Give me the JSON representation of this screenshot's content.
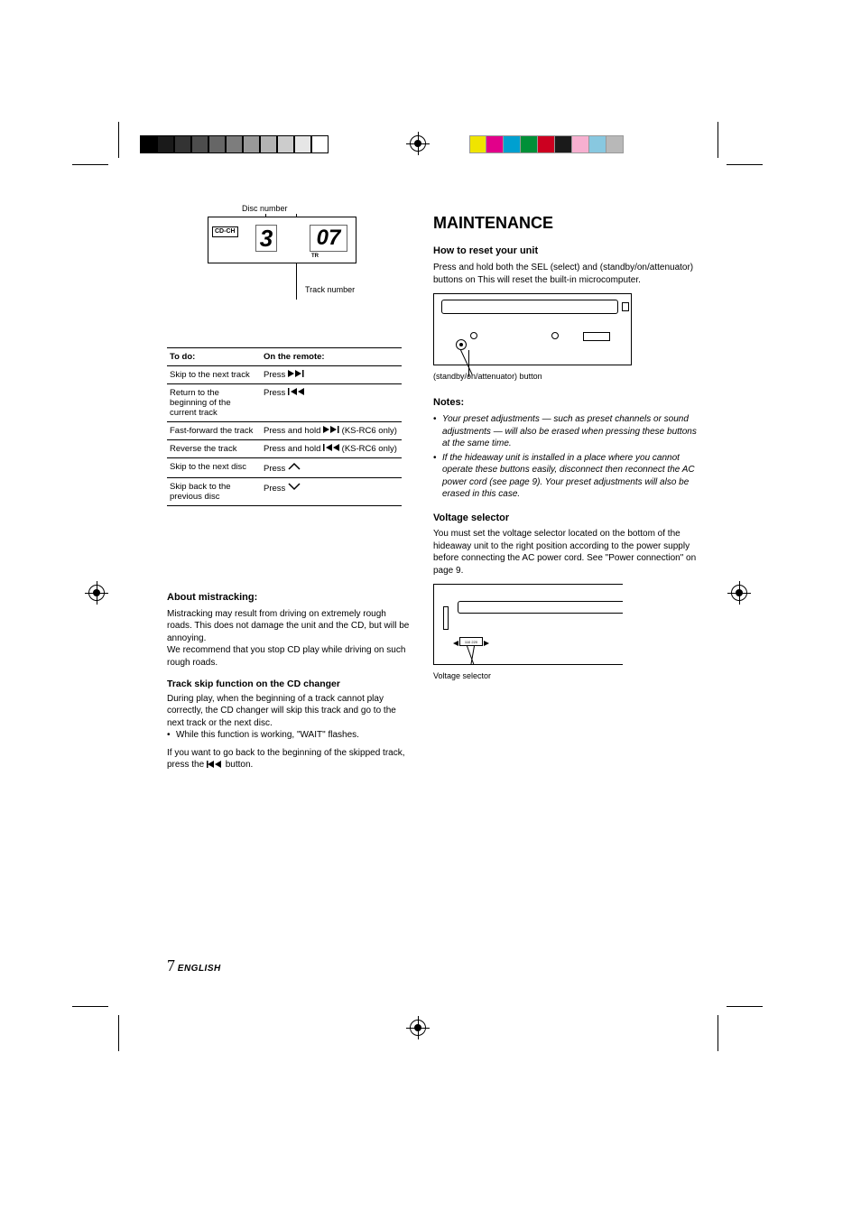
{
  "crop_marks": {
    "grayscale_swatches": [
      "#000000",
      "#1a1a1a",
      "#333333",
      "#4d4d4d",
      "#666666",
      "#7d7d7d",
      "#999999",
      "#b3b3b3",
      "#cccccc",
      "#e6e6e6",
      "#ffffff"
    ],
    "color_swatches": [
      "#f0e400",
      "#e2008a",
      "#00a0d0",
      "#009038",
      "#cc0020",
      "#1a1a1a",
      "#f7b0d0",
      "#88c8e0",
      "#b8b8b8"
    ]
  },
  "lcd": {
    "cdch_label": "CD-CH",
    "disc_digit": "3",
    "track_digits": "07",
    "tr_label": "TR",
    "top_caption": "Disc number",
    "bottom_caption": "Track number"
  },
  "ops_table": {
    "header_left": "To do:",
    "header_right": "On the remote:",
    "rows": [
      {
        "l": "Skip to the next track",
        "r_prefix": "Press ",
        "icon": "next",
        "r_suffix": ""
      },
      {
        "l": "Return to the beginning of the current track",
        "r_prefix": "Press ",
        "icon": "prev",
        "r_suffix": ""
      },
      {
        "l": "Fast-forward the track",
        "r_prefix": "Press and hold ",
        "icon": "next",
        "r_suffix": " (KS-RC6 only)"
      },
      {
        "l": "Reverse the track",
        "r_prefix": "Press and hold ",
        "icon": "prev",
        "r_suffix": " (KS-RC6 only)"
      },
      {
        "l": "Skip to the next disc",
        "r_prefix": "Press ",
        "icon": "up",
        "r_suffix": ""
      },
      {
        "l": "Skip back to the previous disc",
        "r_prefix": "Press ",
        "icon": "down",
        "r_suffix": ""
      }
    ]
  },
  "about_mistracking": {
    "title": "About mistracking:",
    "body": "Mistracking may result from driving on extremely rough roads. This does not damage the unit and the CD, but will be annoying.\nWe recommend that you stop CD play while driving on such rough roads."
  },
  "track_skip": {
    "title": "Track skip function on the CD changer",
    "p1": "During play, when the beginning of a track cannot play correctly, the CD changer will skip this track and go to the next track or the next disc.",
    "bullet1": "While this function is working, \"WAIT\" flashes.",
    "p2_prefix": "If you want to go back to the beginning of the skipped track, press the ",
    "p2_suffix": " button."
  },
  "maintenance": {
    "heading": "MAINTENANCE",
    "reset": {
      "title": "How to reset your unit",
      "body": "Press and hold both the SEL (select) and (standby/on/attenuator) buttons on This will reset the built-in microcomputer.",
      "fig_caption": "(standby/on/attenuator) button"
    },
    "selector": {
      "title": "Voltage selector",
      "body": "You must set the voltage selector located on the bottom of the hideaway unit to the right position according to the power supply before connecting the AC power cord. See \"Power connection\" on page 9.",
      "fig_caption": "Voltage selector"
    },
    "notes_title": "Notes:",
    "notes": [
      "Your preset adjustments — such as preset channels or sound adjustments — will also be erased when pressing these buttons at the same time.",
      "If the hideaway unit is installed in a place where you cannot operate these buttons easily, disconnect then reconnect the AC power cord (see page 9). Your preset adjustments will also be erased in this case."
    ]
  },
  "footer": {
    "page_num": "7",
    "language": "ENGLISH"
  }
}
